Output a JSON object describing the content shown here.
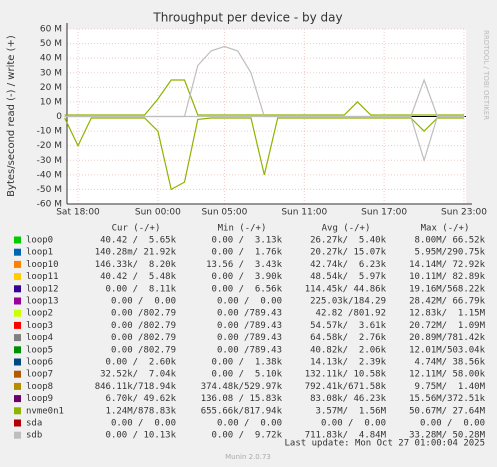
{
  "chart_data": {
    "type": "line",
    "title": "Throughput per device - by day",
    "y_label": "Bytes/second read (-) / write (+)",
    "side_label": "RRDTOOL / TOBI OETIKER",
    "x": [
      null,
      "Sat 18:00",
      null,
      null,
      null,
      null,
      null,
      "Sun 00:00",
      null,
      null,
      null,
      null,
      "Sun 05:00",
      null,
      null,
      null,
      null,
      null,
      "Sun 11:00",
      null,
      null,
      null,
      null,
      null,
      "Sun 17:00",
      null,
      null,
      null,
      null,
      null,
      "Sun 23:00"
    ],
    "ylim": [
      -60000000,
      60000000
    ],
    "yticks": [
      {
        "value": 60000000,
        "label": "60 M"
      },
      {
        "value": 50000000,
        "label": "50 M"
      },
      {
        "value": 40000000,
        "label": "40 M"
      },
      {
        "value": 30000000,
        "label": "30 M"
      },
      {
        "value": 20000000,
        "label": "20 M"
      },
      {
        "value": 10000000,
        "label": "10 M"
      },
      0,
      {
        "value": -10000000,
        "label": "-10 M"
      },
      {
        "value": -20000000,
        "label": "-20 M"
      },
      {
        "value": -30000000,
        "label": "-30 M"
      },
      {
        "value": -40000000,
        "label": "-40 M"
      },
      {
        "value": -50000000,
        "label": "-50 M"
      },
      {
        "value": -60000000,
        "label": "-60 M"
      }
    ],
    "grid": true,
    "columns": [
      "Cur (-/+)",
      "Min (-/+)",
      "Avg (-/+)",
      "Max (-/+)"
    ],
    "series": [
      {
        "name": "loop0",
        "color": "#00cc00",
        "cur": "40.42 /  5.65k",
        "min": "0.00 /  3.13k",
        "avg": "26.27k/  5.40k",
        "max": "8.00M/ 66.52k"
      },
      {
        "name": "loop1",
        "color": "#0066b3",
        "cur": "140.28m/ 21.92k",
        "min": "0.00 /  1.76k",
        "avg": "20.27k/ 15.07k",
        "max": "5.95M/290.75k"
      },
      {
        "name": "loop10",
        "color": "#ff8000",
        "cur": "146.33k/  8.20k",
        "min": "13.56 /  3.43k",
        "avg": "42.74k/  6.23k",
        "max": "14.14M/ 72.92k"
      },
      {
        "name": "loop11",
        "color": "#ffcc00",
        "cur": "40.42 /  5.48k",
        "min": "0.00 /  3.90k",
        "avg": "48.54k/  5.97k",
        "max": "10.11M/ 82.89k"
      },
      {
        "name": "loop12",
        "color": "#330099",
        "cur": "0.00 /  8.11k",
        "min": "0.00 /  6.56k",
        "avg": "114.45k/ 44.86k",
        "max": "19.16M/568.22k"
      },
      {
        "name": "loop13",
        "color": "#990099",
        "cur": "0.00 /  0.00",
        "min": "0.00 /  0.00",
        "avg": "225.03k/184.29",
        "max": "28.42M/ 66.79k"
      },
      {
        "name": "loop2",
        "color": "#ccff00",
        "cur": "0.00 /802.79",
        "min": "0.00 /789.43",
        "avg": "42.82 /801.92",
        "max": "12.83k/  1.15M"
      },
      {
        "name": "loop3",
        "color": "#ff0000",
        "cur": "0.00 /802.79",
        "min": "0.00 /789.43",
        "avg": "54.57k/  3.61k",
        "max": "20.72M/  1.09M"
      },
      {
        "name": "loop4",
        "color": "#808080",
        "cur": "0.00 /802.79",
        "min": "0.00 /789.43",
        "avg": "64.58k/  2.76k",
        "max": "20.89M/781.42k"
      },
      {
        "name": "loop5",
        "color": "#008f00",
        "cur": "0.00 /802.79",
        "min": "0.00 /789.43",
        "avg": "40.82k/  2.06k",
        "max": "12.01M/503.04k"
      },
      {
        "name": "loop6",
        "color": "#00487d",
        "cur": "0.00 /  2.60k",
        "min": "0.00 /  1.38k",
        "avg": "14.13k/  2.39k",
        "max": "4.74M/ 38.56k"
      },
      {
        "name": "loop7",
        "color": "#b35a00",
        "cur": "32.52k/  7.04k",
        "min": "0.00 /  5.10k",
        "avg": "132.11k/ 10.58k",
        "max": "12.11M/ 58.00k"
      },
      {
        "name": "loop8",
        "color": "#b38f00",
        "cur": "846.11k/718.94k",
        "min": "374.48k/529.97k",
        "avg": "792.41k/671.58k",
        "max": "9.75M/  1.40M"
      },
      {
        "name": "loop9",
        "color": "#6b006b",
        "cur": "6.70k/ 49.62k",
        "min": "136.08 / 15.83k",
        "avg": "83.08k/ 46.23k",
        "max": "15.56M/372.51k"
      },
      {
        "name": "nvme0n1",
        "color": "#8fb300",
        "cur": "1.24M/878.83k",
        "min": "655.66k/817.94k",
        "avg": "3.57M/  1.56M",
        "max": "50.67M/ 27.64M",
        "read": [
          -1000000,
          -20000000,
          -1000000,
          -1000000,
          -1000000,
          -1000000,
          -1000000,
          -10000000,
          -50000000,
          -45000000,
          -2000000,
          -1000000,
          -1000000,
          -1000000,
          -1000000,
          -40000000,
          -1000000,
          -1000000,
          -1000000,
          -1000000,
          -1000000,
          -1000000,
          -1000000,
          -1000000,
          -1000000,
          -1000000,
          -1000000,
          -10000000,
          -1000000,
          -1000000,
          -1000000
        ],
        "write": [
          1000000,
          1000000,
          1000000,
          1000000,
          1000000,
          1000000,
          1000000,
          12000000,
          25000000,
          25000000,
          1000000,
          1000000,
          1000000,
          1000000,
          1000000,
          1000000,
          1000000,
          1000000,
          1000000,
          1000000,
          1000000,
          1000000,
          10000000,
          1000000,
          1000000,
          1000000,
          1000000,
          1000000,
          1000000,
          1000000,
          1000000
        ]
      },
      {
        "name": "sda",
        "color": "#b30000",
        "cur": "0.00 /  0.00",
        "min": "0.00 /  0.00",
        "avg": "0.00 /  0.00",
        "max": "0.00 /  0.00"
      },
      {
        "name": "sdb",
        "color": "#bebebe",
        "cur": "0.00 / 10.13k",
        "min": "0.00 /  9.72k",
        "avg": "711.83k/  4.84M",
        "max": "33.28M/ 50.28M",
        "read": [
          0,
          0,
          0,
          0,
          0,
          0,
          0,
          0,
          0,
          0,
          0,
          0,
          0,
          0,
          0,
          0,
          0,
          0,
          0,
          0,
          0,
          0,
          0,
          0,
          0,
          0,
          0,
          -30000000,
          0,
          0,
          0
        ],
        "write": [
          0,
          0,
          0,
          0,
          0,
          0,
          0,
          0,
          0,
          0,
          35000000,
          45000000,
          48000000,
          45000000,
          30000000,
          0,
          0,
          0,
          0,
          0,
          0,
          0,
          0,
          0,
          0,
          0,
          0,
          25000000,
          0,
          0,
          0
        ]
      }
    ],
    "last_update": "Last update: Mon Oct 27 01:00:04 2025",
    "footer": "Munin 2.0.73"
  }
}
